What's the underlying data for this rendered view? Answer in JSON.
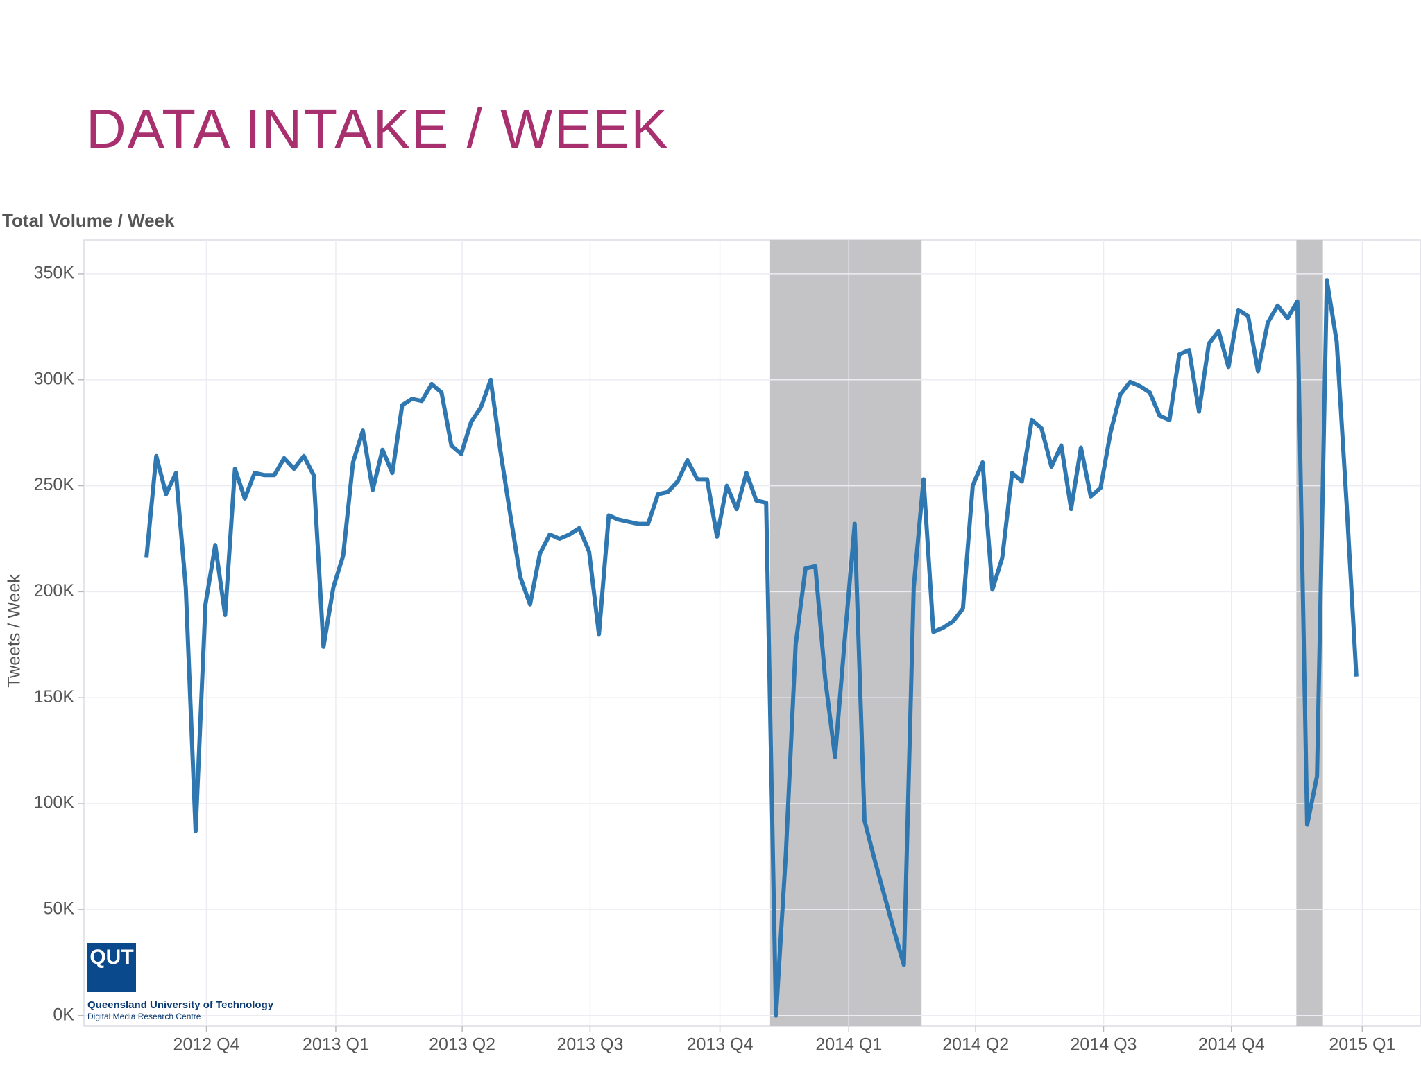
{
  "slide_title": "DATA INTAKE / WEEK",
  "logo": {
    "mark": "QUT",
    "name": "Queensland University of Technology",
    "unit": "Digital Media Research Centre"
  },
  "chart_data": {
    "type": "line",
    "title": "Total Volume / Week",
    "y_label": "Tweets / Week",
    "x": [
      0,
      1,
      2,
      3,
      4,
      5,
      6,
      7,
      8,
      9,
      10,
      11,
      12,
      13,
      14,
      15,
      16,
      17,
      18,
      19,
      20,
      21,
      22,
      23,
      24,
      25,
      26,
      27,
      28,
      29,
      30,
      31,
      32,
      33,
      34,
      35,
      36,
      37,
      38,
      39,
      40,
      41,
      42,
      43,
      44,
      45,
      46,
      47,
      48,
      49,
      50,
      51,
      52,
      53,
      54,
      55,
      56,
      57,
      58,
      59,
      60,
      61,
      62,
      63,
      64,
      65,
      66,
      67,
      68,
      69,
      70,
      71,
      72,
      73,
      74,
      75,
      76,
      77,
      78,
      79,
      80,
      81,
      82,
      83,
      84,
      85,
      86,
      87,
      88,
      89,
      90,
      91,
      92,
      93,
      94,
      95,
      96,
      97,
      98,
      99,
      100,
      101,
      102,
      103,
      104,
      105,
      106,
      107,
      108,
      109,
      110,
      111,
      112,
      113,
      114,
      115,
      116,
      117,
      118,
      119,
      120,
      121,
      122,
      123
    ],
    "series": [
      {
        "name": "Tweets / Week",
        "color": "#2f77b0",
        "values": [
          216000,
          264000,
          246000,
          256000,
          202000,
          87000,
          194000,
          222000,
          189000,
          258000,
          244000,
          256000,
          255000,
          255000,
          263000,
          258000,
          264000,
          255000,
          174000,
          202000,
          217000,
          261000,
          276000,
          248000,
          267000,
          256000,
          288000,
          291000,
          290000,
          298000,
          294000,
          269000,
          265000,
          280000,
          287000,
          300000,
          266000,
          236000,
          207000,
          194000,
          218000,
          227000,
          225000,
          227000,
          230000,
          219000,
          180000,
          236000,
          234000,
          233000,
          232000,
          232000,
          246000,
          247000,
          252000,
          262000,
          253000,
          253000,
          226000,
          250000,
          239000,
          256000,
          243000,
          242000,
          0,
          76000,
          175000,
          211000,
          212000,
          159000,
          122000,
          178000,
          232000,
          92000,
          74000,
          57000,
          40000,
          24000,
          202000,
          253000,
          181000,
          183000,
          186000,
          192000,
          250000,
          261000,
          201000,
          216000,
          256000,
          252000,
          281000,
          277000,
          259000,
          269000,
          239000,
          268000,
          245000,
          249000,
          275000,
          293000,
          299000,
          297000,
          294000,
          283000,
          281000,
          312000,
          314000,
          285000,
          317000,
          323000,
          306000,
          333000,
          330000,
          304000,
          327000,
          335000,
          329000,
          337000,
          90000,
          113000,
          347000,
          318000,
          242000,
          160000
        ]
      }
    ],
    "xlim": [
      -6.35,
      129.5
    ],
    "xticks": [
      {
        "value": 6.1,
        "label": "2012 Q4"
      },
      {
        "value": 19.25,
        "label": "2013 Q1"
      },
      {
        "value": 32.1,
        "label": "2013 Q2"
      },
      {
        "value": 45.1,
        "label": "2013 Q3"
      },
      {
        "value": 58.3,
        "label": "2013 Q4"
      },
      {
        "value": 71.4,
        "label": "2014 Q1"
      },
      {
        "value": 84.3,
        "label": "2014 Q2"
      },
      {
        "value": 97.3,
        "label": "2014 Q3"
      },
      {
        "value": 110.3,
        "label": "2014 Q4"
      },
      {
        "value": 123.6,
        "label": "2015 Q1"
      }
    ],
    "ylim": [
      -5000,
      366000
    ],
    "yticks": [
      {
        "value": 0,
        "label": "0K"
      },
      {
        "value": 50000,
        "label": "50K"
      },
      {
        "value": 100000,
        "label": "100K"
      },
      {
        "value": 150000,
        "label": "150K"
      },
      {
        "value": 200000,
        "label": "200K"
      },
      {
        "value": 250000,
        "label": "250K"
      },
      {
        "value": 300000,
        "label": "300K"
      },
      {
        "value": 350000,
        "label": "350K"
      }
    ],
    "highlights": [
      [
        63.4,
        78.8
      ],
      [
        116.9,
        119.6
      ]
    ],
    "highlight_color": "#c4c4c6",
    "grid": true
  }
}
